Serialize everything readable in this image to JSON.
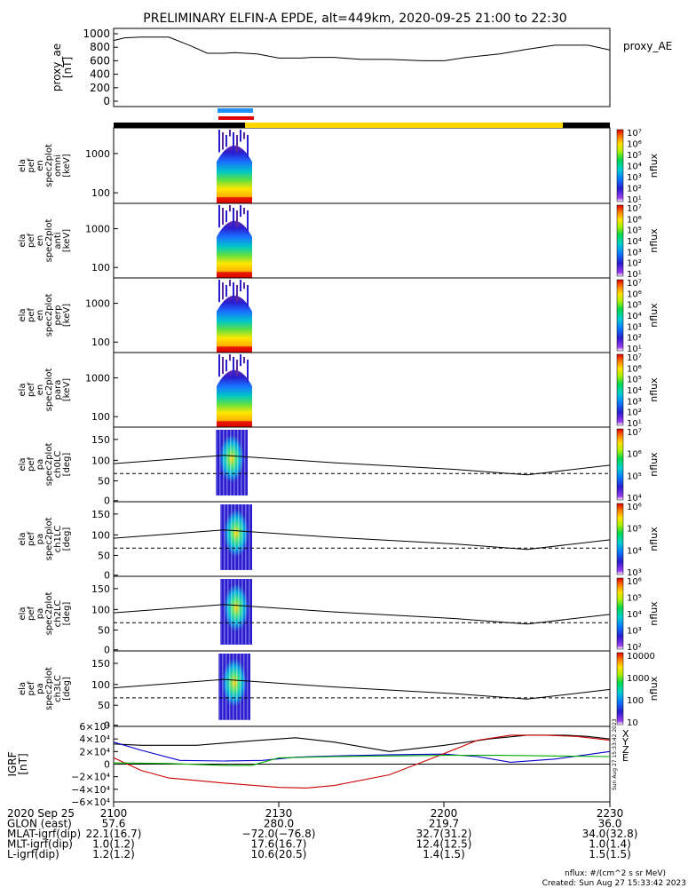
{
  "header": {
    "title": "PRELIMINARY ELFIN-A EPDE, alt=449km, 2020-09-25 21:00 to 22:30"
  },
  "colors": {
    "bar_black": "#000000",
    "bar_yellow": "#ffd700",
    "marker_blue": "#1e90ff",
    "marker_red": "#e00000",
    "grf_x": "#000000",
    "grf_y": "#0000cc",
    "grf_z": "#cc0000",
    "grf_e": "#00aa00"
  },
  "chart_data": [
    {
      "type": "line",
      "panel": "proxy_ae",
      "ylabel_lines": [
        "proxy_ae",
        "[nT]"
      ],
      "legend": "proxy_AE",
      "ylim": [
        0,
        1000
      ],
      "yticks": [
        "1000",
        "800",
        "600",
        "400",
        "200",
        "0"
      ],
      "xlim": [
        0,
        90
      ],
      "x": [
        0,
        2,
        5,
        10,
        14,
        17,
        20,
        22,
        26,
        30,
        34,
        36,
        40,
        45,
        50,
        56,
        60,
        64,
        70,
        75,
        80,
        86,
        90
      ],
      "values": [
        900,
        940,
        950,
        950,
        820,
        710,
        710,
        720,
        700,
        640,
        640,
        650,
        650,
        620,
        620,
        600,
        600,
        650,
        700,
        770,
        830,
        830,
        760
      ]
    },
    {
      "type": "heatmap",
      "panel": "spec2plot_omni",
      "ylabel_lines": [
        "ela",
        "pef",
        "en",
        "spec2plot",
        "omni",
        "[keV]"
      ],
      "yticks": [
        "1000",
        "100"
      ],
      "colorbar_unit": "nflux",
      "colorbar_ticks": [
        "10⁷",
        "10⁶",
        "10⁵",
        "10⁴",
        "10³",
        "10²",
        "10¹"
      ]
    },
    {
      "type": "heatmap",
      "panel": "spec2plot_anti",
      "ylabel_lines": [
        "ela",
        "pef",
        "en",
        "spec2plot",
        "anti",
        "[keV]"
      ],
      "yticks": [
        "1000",
        "100"
      ],
      "colorbar_unit": "nflux",
      "colorbar_ticks": [
        "10⁷",
        "10⁶",
        "10⁵",
        "10⁴",
        "10³",
        "10²",
        "10¹"
      ]
    },
    {
      "type": "heatmap",
      "panel": "spec2plot_perp",
      "ylabel_lines": [
        "ela",
        "pef",
        "en",
        "spec2plot",
        "perp",
        "[keV]"
      ],
      "yticks": [
        "1000",
        "100"
      ],
      "colorbar_unit": "nflux",
      "colorbar_ticks": [
        "10⁷",
        "10⁶",
        "10⁵",
        "10⁴",
        "10³",
        "10²",
        "10¹"
      ]
    },
    {
      "type": "heatmap",
      "panel": "spec2plot_para",
      "ylabel_lines": [
        "ela",
        "pef",
        "en",
        "spec2plot",
        "para",
        "[keV]"
      ],
      "yticks": [
        "1000",
        "100"
      ],
      "colorbar_unit": "nflux",
      "colorbar_ticks": [
        "10⁷",
        "10⁶",
        "10⁵",
        "10⁴",
        "10³",
        "10²",
        "10¹"
      ]
    },
    {
      "type": "heatmap",
      "panel": "spec2plot_ch0LC",
      "ylabel_lines": [
        "ela",
        "pef",
        "pa",
        "spec2plot",
        "ch0LC",
        "[deg]"
      ],
      "yticks": [
        "150",
        "100",
        "50",
        "0"
      ],
      "colorbar_unit": "nflux",
      "colorbar_ticks": [
        "10⁷",
        "10⁶",
        "10⁵",
        "10⁴"
      ]
    },
    {
      "type": "heatmap",
      "panel": "spec2plot_ch1LC",
      "ylabel_lines": [
        "ela",
        "pef",
        "pa",
        "spec2plot",
        "ch1LC",
        "[deg]"
      ],
      "yticks": [
        "150",
        "100",
        "50",
        "0"
      ],
      "colorbar_unit": "nflux",
      "colorbar_ticks": [
        "10⁶",
        "10⁵",
        "10⁴",
        "10³"
      ]
    },
    {
      "type": "heatmap",
      "panel": "spec2plot_ch2LC",
      "ylabel_lines": [
        "ela",
        "pef",
        "pa",
        "spec2plot",
        "ch2LC",
        "[deg]"
      ],
      "yticks": [
        "150",
        "100",
        "50",
        "0"
      ],
      "colorbar_unit": "nflux",
      "colorbar_ticks": [
        "10⁶",
        "10⁵",
        "10⁴",
        "10³",
        "10²"
      ]
    },
    {
      "type": "heatmap",
      "panel": "spec2plot_ch3LC",
      "ylabel_lines": [
        "ela",
        "pef",
        "pa",
        "spec2plot",
        "ch3LC",
        "[deg]"
      ],
      "yticks": [
        "150",
        "100",
        "50",
        "0"
      ],
      "colorbar_unit": "nflux",
      "colorbar_ticks": [
        "10000",
        "1000",
        "100",
        "10"
      ]
    },
    {
      "type": "line",
      "panel": "grf",
      "ylabel_lines": [
        "IGRF",
        "[nT]"
      ],
      "ylim": [
        -60000,
        60000
      ],
      "yticks": [
        "6×10⁴",
        "4×10⁴",
        "2×10⁴",
        "0",
        "−2×10⁴",
        "−4×10⁴",
        "−6×10⁴"
      ],
      "xlim": [
        0,
        90
      ],
      "legend": [
        "X",
        "Y",
        "Z",
        "E"
      ],
      "series": [
        {
          "name": "X",
          "x": [
            0,
            5,
            15,
            25,
            33,
            40,
            50,
            60,
            68,
            75,
            82,
            86,
            90
          ],
          "values": [
            32000,
            30000,
            30000,
            37000,
            42000,
            35000,
            20000,
            30000,
            40000,
            46000,
            46000,
            44000,
            40000
          ]
        },
        {
          "name": "Y",
          "x": [
            0,
            5,
            12,
            20,
            27,
            33,
            40,
            50,
            60,
            66,
            72,
            80,
            90
          ],
          "values": [
            35000,
            22000,
            6000,
            5000,
            6000,
            11000,
            13000,
            15000,
            16000,
            12000,
            3000,
            8000,
            20000
          ]
        },
        {
          "name": "Z",
          "x": [
            0,
            5,
            10,
            20,
            30,
            35,
            40,
            50,
            58,
            66,
            72,
            78,
            84,
            90
          ],
          "values": [
            10000,
            -10000,
            -22000,
            -30000,
            -37000,
            -38000,
            -34000,
            -17000,
            10000,
            38000,
            46000,
            46000,
            44000,
            38000
          ]
        },
        {
          "name": "E",
          "x": [
            0,
            10,
            20,
            25,
            30,
            40,
            50,
            60,
            70,
            80,
            90
          ],
          "values": [
            2000,
            1000,
            -2000,
            -2000,
            10000,
            12000,
            13000,
            14000,
            14000,
            13000,
            12000
          ]
        }
      ]
    }
  ],
  "orbit": {
    "row_labels": [
      "2020 Sep 25",
      "GLON (east)",
      "MLAT-igrf(dip)",
      "MLT-igrf(dip)",
      "L-igrf(dip)"
    ],
    "columns": [
      {
        "values": [
          "2100",
          "57.6",
          "22.1(16.7)",
          "1.0(1.2)",
          "1.2(1.2)"
        ]
      },
      {
        "values": [
          "2130",
          "280.0",
          "−72.0(−76.8)",
          "17.6(16.7)",
          "10.6(20.5)"
        ]
      },
      {
        "values": [
          "2200",
          "219.7",
          "32.7(31.2)",
          "12.4(12.5)",
          "1.4(1.5)"
        ]
      },
      {
        "values": [
          "2230",
          "36.0",
          "34.0(32.8)",
          "1.0(1.4)",
          "1.5(1.5)"
        ]
      }
    ]
  },
  "footer": {
    "units": "nflux: #/(cm^2 s sr MeV)",
    "created": "Created: Sun Aug 27 15:33:42 2023",
    "side_stamp": "Sun Aug 27 15:33:42 2023"
  }
}
